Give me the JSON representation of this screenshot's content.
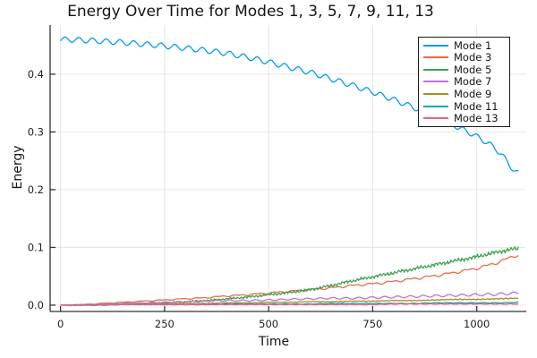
{
  "title": "Energy Over Time for Modes 1, 3, 5, 7, 9, 11, 13",
  "chart_data": {
    "type": "line",
    "title": "Energy Over Time for Modes 1, 3, 5, 7, 9, 11, 13",
    "xlabel": "Time",
    "ylabel": "Energy",
    "xlim": [
      -25,
      1119
    ],
    "ylim": [
      -0.0109,
      0.4851
    ],
    "grid": true,
    "legend_position": "top-right-inside",
    "xticks": [
      0,
      250,
      500,
      750,
      1000
    ],
    "xtick_labels": [
      "0",
      "250",
      "500",
      "750",
      "1000"
    ],
    "yticks": [
      0.0,
      0.1,
      0.2,
      0.3,
      0.4
    ],
    "ytick_labels": [
      "0.0",
      "0.1",
      "0.2",
      "0.3",
      "0.4"
    ],
    "x": [
      0,
      50,
      100,
      150,
      200,
      250,
      300,
      350,
      400,
      450,
      500,
      550,
      600,
      650,
      700,
      750,
      800,
      850,
      900,
      950,
      1000,
      1050,
      1100
    ],
    "series": [
      {
        "name": "Mode 1",
        "color": "#009AFA",
        "values": [
          0.46,
          0.459,
          0.457,
          0.455,
          0.452,
          0.449,
          0.445,
          0.441,
          0.436,
          0.429,
          0.421,
          0.412,
          0.403,
          0.392,
          0.381,
          0.369,
          0.356,
          0.342,
          0.327,
          0.31,
          0.292,
          0.268,
          0.228
        ],
        "wiggle": {
          "type": "sine",
          "amp": 0.0045,
          "period": 33,
          "phase": -0.5,
          "grow": false
        }
      },
      {
        "name": "Mode 3",
        "color": "#E36F47",
        "values": [
          0.0,
          0.001,
          0.003,
          0.005,
          0.007,
          0.009,
          0.011,
          0.013,
          0.016,
          0.018,
          0.021,
          0.024,
          0.027,
          0.03,
          0.034,
          0.037,
          0.041,
          0.046,
          0.051,
          0.057,
          0.064,
          0.074,
          0.087
        ],
        "wiggle": {
          "type": "saw",
          "amp": 0.0022,
          "period": 46,
          "phase": 0,
          "grow": true
        }
      },
      {
        "name": "Mode 5",
        "color": "#3DA44E",
        "values": [
          0.0,
          0.0,
          0.001,
          0.002,
          0.003,
          0.004,
          0.006,
          0.008,
          0.011,
          0.014,
          0.018,
          0.022,
          0.027,
          0.034,
          0.042,
          0.049,
          0.056,
          0.063,
          0.07,
          0.077,
          0.084,
          0.092,
          0.098
        ],
        "wiggle": {
          "type": "jag",
          "amp": 0.0035,
          "period": 9,
          "phase": 0,
          "grow": true
        }
      },
      {
        "name": "Mode 7",
        "color": "#C371D2",
        "values": [
          0.0,
          0.001,
          0.002,
          0.003,
          0.004,
          0.005,
          0.006,
          0.007,
          0.008,
          0.008,
          0.009,
          0.01,
          0.011,
          0.012,
          0.012,
          0.013,
          0.014,
          0.015,
          0.016,
          0.017,
          0.018,
          0.019,
          0.021
        ],
        "wiggle": {
          "type": "sine",
          "amp": 0.0022,
          "period": 31,
          "phase": 0.8,
          "grow": true
        }
      },
      {
        "name": "Mode 9",
        "color": "#AC8E18",
        "values": [
          0.0,
          0.0,
          0.001,
          0.001,
          0.002,
          0.002,
          0.003,
          0.003,
          0.004,
          0.004,
          0.005,
          0.005,
          0.006,
          0.006,
          0.007,
          0.007,
          0.008,
          0.008,
          0.009,
          0.01,
          0.01,
          0.011,
          0.012
        ],
        "wiggle": {
          "type": "jag",
          "amp": 0.0008,
          "period": 11,
          "phase": 0,
          "grow": true
        }
      },
      {
        "name": "Mode 11",
        "color": "#00AAAE",
        "values": [
          0.0,
          0.0,
          0.0,
          0.001,
          0.001,
          0.001,
          0.001,
          0.001,
          0.002,
          0.002,
          0.002,
          0.002,
          0.002,
          0.003,
          0.003,
          0.003,
          0.003,
          0.003,
          0.004,
          0.004,
          0.004,
          0.004,
          0.005
        ],
        "wiggle": {
          "type": "sine",
          "amp": 0.0004,
          "period": 28,
          "phase": 0,
          "grow": false
        }
      },
      {
        "name": "Mode 13",
        "color": "#ED5D93",
        "values": [
          0.0,
          0.0,
          0.0,
          0.001,
          0.001,
          0.001,
          0.001,
          0.001,
          0.001,
          0.001,
          0.001,
          0.001,
          0.001,
          0.001,
          0.001,
          0.001,
          0.002,
          0.002,
          0.002,
          0.002,
          0.002,
          0.002,
          0.002
        ],
        "wiggle": {
          "type": "sine",
          "amp": 0.0004,
          "period": 24,
          "phase": 1.5,
          "grow": false
        }
      }
    ]
  },
  "style": {
    "grid_color": "#E5E5E5",
    "spine_color": "#333333",
    "tick_text_color": "#202020",
    "legend_border_color": "#1a1a1a"
  }
}
